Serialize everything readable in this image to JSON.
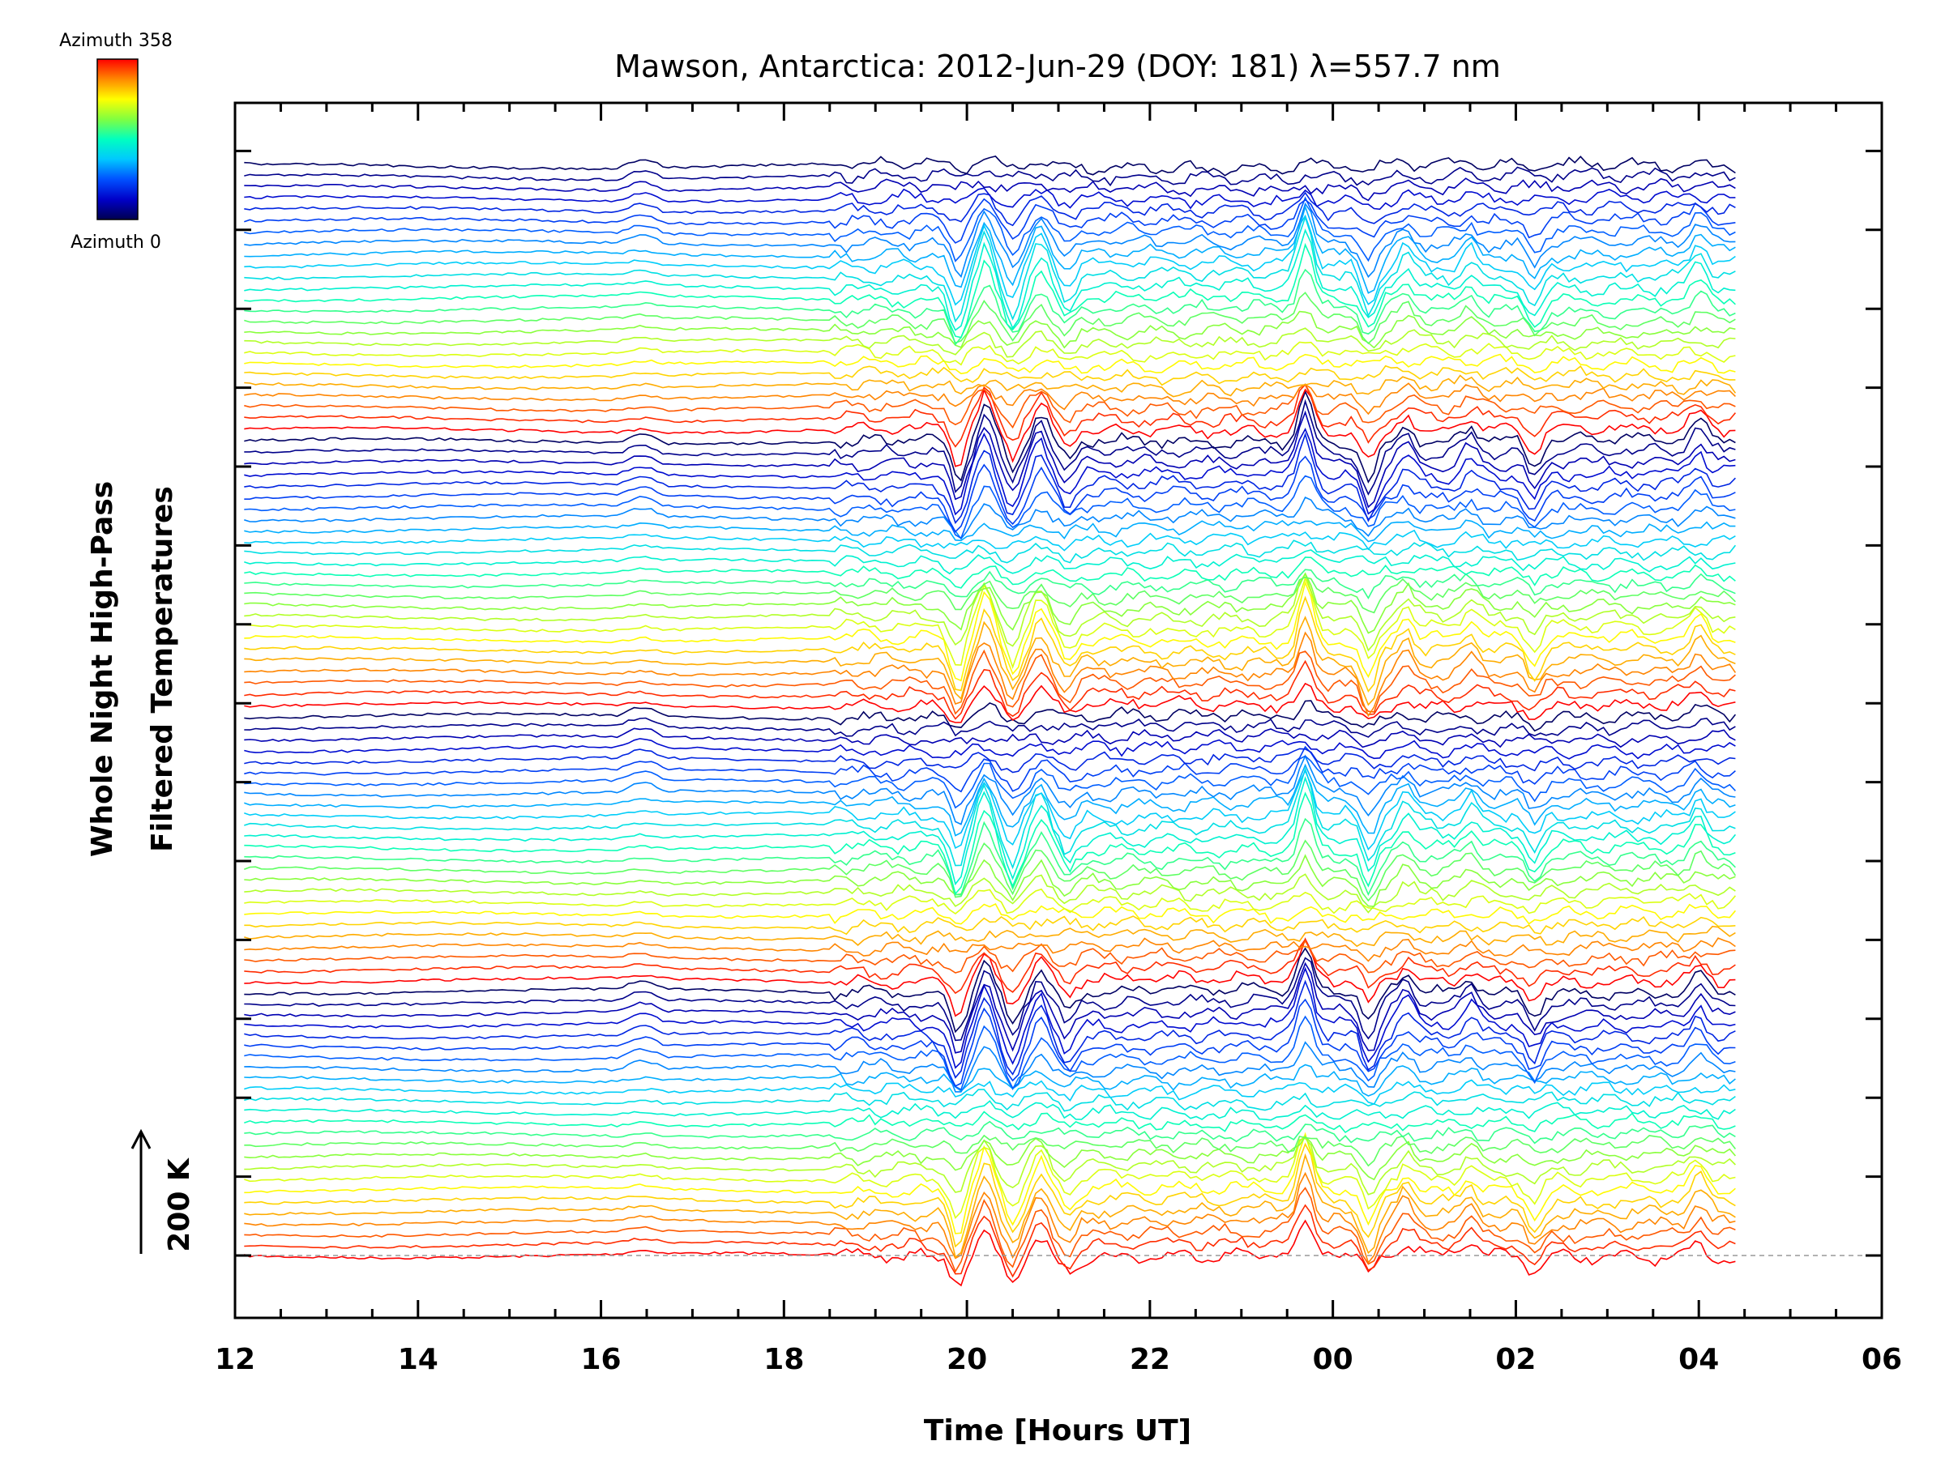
{
  "chart_data": {
    "type": "line",
    "title": "Mawson, Antarctica: 2012-Jun-29 (DOY: 181) λ=557.7 nm",
    "xlabel": "Time [Hours UT]",
    "ylabel_line1": "Whole Night High-Pass",
    "ylabel_line2": "Filtered Temperatures",
    "scale_label": "200 K",
    "colorbar": {
      "top_label": "Azimuth 358",
      "bottom_label": "Azimuth 0",
      "colors": [
        "#ff0000",
        "#ff8800",
        "#ffff00",
        "#80ff40",
        "#00ffc0",
        "#00c8ff",
        "#0050ff",
        "#0000c8",
        "#000050"
      ]
    },
    "x_tick_labels": [
      "12",
      "14",
      "16",
      "18",
      "20",
      "22",
      "00",
      "02",
      "04",
      "06"
    ],
    "x_unit": "hours from 12 UT",
    "xlim": [
      0,
      18
    ],
    "data_xrange": [
      0.1,
      16.4
    ],
    "trace_count": 100,
    "grid": false,
    "legend": "colorbar top-left",
    "events_hours_after_12UT": [
      {
        "time": 7.9,
        "amplitude": -1.0
      },
      {
        "time": 8.2,
        "amplitude": 0.9
      },
      {
        "time": 8.5,
        "amplitude": -0.8
      },
      {
        "time": 8.8,
        "amplitude": 0.7
      },
      {
        "time": 9.1,
        "amplitude": -0.5
      },
      {
        "time": 11.7,
        "amplitude": 1.2
      },
      {
        "time": 12.4,
        "amplitude": -0.9
      },
      {
        "time": 12.8,
        "amplitude": 0.5
      },
      {
        "time": 13.5,
        "amplitude": 0.4
      },
      {
        "time": 14.2,
        "amplitude": -0.6
      },
      {
        "time": 16.0,
        "amplitude": 0.5
      }
    ]
  }
}
